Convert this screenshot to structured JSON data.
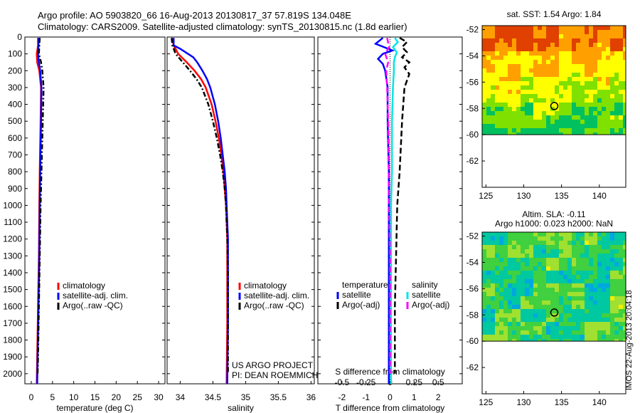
{
  "header": {
    "line1": "Argo profile: AO 5903820_66 16-Aug-2013 20130817_37 57.819S 134.048E",
    "line2": "Climatology: CARS2009. Satellite-adjusted climatology: synTS_20130815.nc (1.8d earlier)"
  },
  "colors": {
    "climatology": "#ff0000",
    "satellite": "#0000ff",
    "argo": "#000000",
    "salinity_sat": "#00e5e5",
    "salinity_argo": "#ff00ff"
  },
  "depth_ticks": [
    "0",
    "100",
    "200",
    "300",
    "400",
    "500",
    "600",
    "700",
    "800",
    "900",
    "1000",
    "1100",
    "1200",
    "1300",
    "1400",
    "1500",
    "1600",
    "1700",
    "1800",
    "1900",
    "2000"
  ],
  "chart_data": [
    {
      "type": "line",
      "xlabel": "temperature (deg C)",
      "xticks": [
        "0",
        "5",
        "10",
        "15",
        "20",
        "25",
        "30"
      ],
      "xlim": [
        -1.5,
        31.5
      ],
      "ylim": [
        2060,
        0
      ],
      "legend": {
        "position": "bottom-center",
        "entries": [
          "climatology",
          "satellite-adj. clim.",
          "Argo(..raw -QC)"
        ]
      },
      "series": [
        {
          "name": "climatology",
          "depth": [
            5,
            50,
            100,
            150,
            200,
            300,
            500,
            800,
            1000,
            1300,
            1600,
            1900,
            2060
          ],
          "values": [
            1.6,
            1.6,
            1.3,
            1.4,
            1.9,
            2.3,
            2.2,
            2.0,
            1.9,
            1.8,
            1.6,
            1.4,
            1.3
          ]
        },
        {
          "name": "satellite-adj. clim.",
          "depth": [
            5,
            50,
            100,
            150,
            200,
            300,
            500,
            800,
            1000,
            1300,
            1600,
            1900,
            2060
          ],
          "values": [
            1.7,
            1.7,
            1.6,
            1.8,
            2.1,
            2.4,
            2.3,
            2.1,
            2.0,
            1.9,
            1.7,
            1.5,
            1.4
          ]
        },
        {
          "name": "Argo(..raw -QC)",
          "depth": [
            5,
            50,
            100,
            150,
            200,
            300,
            500,
            800,
            1000,
            1300,
            1600,
            1900,
            2000
          ],
          "values": [
            2.0,
            1.9,
            1.8,
            2.3,
            2.6,
            2.9,
            2.7,
            2.4,
            2.2,
            2.0,
            1.8,
            1.6,
            1.5
          ]
        }
      ],
      "annotations": []
    },
    {
      "type": "line",
      "xlabel": "salinity",
      "xticks": [
        "34",
        "34.5",
        "35",
        "35.5",
        "36"
      ],
      "xlim": [
        33.8,
        36.05
      ],
      "ylim": [
        2060,
        0
      ],
      "legend": {
        "position": "bottom-right",
        "entries": [
          "climatology",
          "satellite-adj. clim.",
          "Argo(..raw -QC)"
        ]
      },
      "series": [
        {
          "name": "climatology",
          "depth": [
            5,
            50,
            100,
            150,
            200,
            250,
            300,
            400,
            500,
            600,
            700,
            800,
            900,
            1000,
            1100,
            1200,
            1400,
            1700,
            2060
          ],
          "values": [
            33.88,
            33.9,
            33.97,
            34.1,
            34.22,
            34.32,
            34.39,
            34.48,
            34.54,
            34.59,
            34.63,
            34.66,
            34.68,
            34.7,
            34.71,
            34.72,
            34.72,
            34.72,
            34.71
          ]
        },
        {
          "name": "satellite-adj. clim.",
          "depth": [
            5,
            50,
            70,
            120,
            150,
            200,
            250,
            300,
            400,
            500,
            600,
            700,
            800,
            900,
            1000,
            1100,
            1200,
            1400,
            1700,
            2060
          ],
          "values": [
            33.9,
            33.9,
            34.0,
            34.2,
            34.26,
            34.34,
            34.41,
            34.46,
            34.53,
            34.58,
            34.62,
            34.65,
            34.68,
            34.7,
            34.71,
            34.72,
            34.73,
            34.73,
            34.73,
            34.72
          ]
        },
        {
          "name": "Argo(..raw -QC)",
          "depth": [
            5,
            50,
            100,
            150,
            200,
            250,
            300,
            400,
            500,
            600,
            700,
            800,
            900,
            1000,
            1100,
            1200,
            1400,
            1700,
            2000
          ],
          "values": [
            33.87,
            33.88,
            33.93,
            34.04,
            34.15,
            34.25,
            34.33,
            34.43,
            34.5,
            34.56,
            34.61,
            34.65,
            34.68,
            34.7,
            34.71,
            34.72,
            34.73,
            34.73,
            34.73
          ]
        }
      ],
      "annotations": [
        "US ARGO PROJECT",
        "PI: DEAN ROEMMICH"
      ]
    },
    {
      "type": "line",
      "xlabel": "T difference from climatology",
      "xticks": [
        "-2",
        "-1",
        "0",
        "1",
        "2"
      ],
      "xlim": [
        -3,
        3
      ],
      "x2label": "S difference from climatology",
      "x2ticks": [
        "-0.5",
        "-0.25",
        "0",
        "0.25",
        "0.5"
      ],
      "ylim": [
        2060,
        0
      ],
      "legend": {
        "position": "bottom-center",
        "groups": [
          {
            "title": "temperature",
            "entries": [
              "satellite",
              "Argo(-adj)"
            ]
          },
          {
            "title": "salinity",
            "entries": [
              "satellite",
              "Argo(-adj)"
            ]
          }
        ]
      },
      "series": [
        {
          "name": "satellite",
          "group": "temperature",
          "depth": [
            5,
            40,
            80,
            100,
            130,
            160,
            200,
            300,
            500,
            800,
            1000,
            1300,
            1600,
            1900,
            2060
          ],
          "values": [
            -0.3,
            -0.6,
            0.1,
            -0.3,
            -0.5,
            -0.3,
            -0.2,
            -0.1,
            -0.1,
            -0.05,
            -0.05,
            -0.05,
            -0.05,
            -0.05,
            -0.05
          ]
        },
        {
          "name": "Argo(-adj)",
          "group": "temperature",
          "depth": [
            5,
            30,
            60,
            90,
            120,
            150,
            180,
            220,
            300,
            500,
            800,
            1000,
            1300,
            1600,
            1900,
            2000
          ],
          "values": [
            0.4,
            0.7,
            0.5,
            0.7,
            0.5,
            0.8,
            0.6,
            0.8,
            0.6,
            0.5,
            0.4,
            0.3,
            0.25,
            0.2,
            0.2,
            0.2
          ]
        },
        {
          "name": "satellite",
          "group": "salinity",
          "depth": [
            5,
            30,
            60,
            90,
            120,
            150,
            200,
            300,
            500,
            800,
            1000,
            1300,
            1600,
            1900,
            2060
          ],
          "values": [
            0.05,
            0.08,
            0.03,
            0.07,
            0.05,
            0.04,
            0.04,
            0.03,
            0.02,
            0.02,
            0.01,
            0.01,
            0.01,
            0.01,
            0.01
          ]
        },
        {
          "name": "Argo(-adj)",
          "group": "salinity",
          "depth": [
            5,
            60,
            100,
            150,
            200,
            300,
            500,
            800,
            1000,
            1300,
            1600,
            1900,
            2000
          ],
          "values": [
            -0.03,
            -0.01,
            -0.05,
            -0.02,
            -0.04,
            -0.03,
            -0.02,
            -0.01,
            -0.01,
            0.0,
            0.0,
            0.0,
            0.0
          ]
        }
      ],
      "annotations": []
    },
    {
      "type": "heatmap",
      "title": "sat. SST: 1.54 Argo: 1.84",
      "xticks": [
        "125",
        "130",
        "135",
        "140"
      ],
      "yticks": [
        "-52",
        "-54",
        "-56",
        "-58",
        "-60",
        "-62"
      ],
      "xlim": [
        124.5,
        143.5
      ],
      "ylim": [
        -64,
        -51.7
      ],
      "data_lat_range": [
        -60,
        -51.7
      ],
      "marker": {
        "lon": 134.048,
        "lat": -57.819
      },
      "palette": [
        "#00c060",
        "#80e000",
        "#ffff00",
        "#ffa000",
        "#e04000"
      ]
    },
    {
      "type": "heatmap",
      "title": "Altim. SLA: -0.11",
      "subtitle": "Argo h1000: 0.023 h2000: NaN",
      "xticks": [
        "125",
        "130",
        "135",
        "140"
      ],
      "yticks": [
        "-52",
        "-54",
        "-56",
        "-58",
        "-60",
        "-62"
      ],
      "xlim": [
        124.5,
        143.5
      ],
      "ylim": [
        -64,
        -51.7
      ],
      "data_lat_range": [
        -60,
        -51.7
      ],
      "marker": {
        "lon": 134.048,
        "lat": -57.819
      },
      "palette": [
        "#00a8e0",
        "#00c8a0",
        "#40d040",
        "#a0e030",
        "#f0f000"
      ]
    }
  ],
  "footer": {
    "stamp": "IMOS 22-Aug-2013 20:04:18"
  }
}
